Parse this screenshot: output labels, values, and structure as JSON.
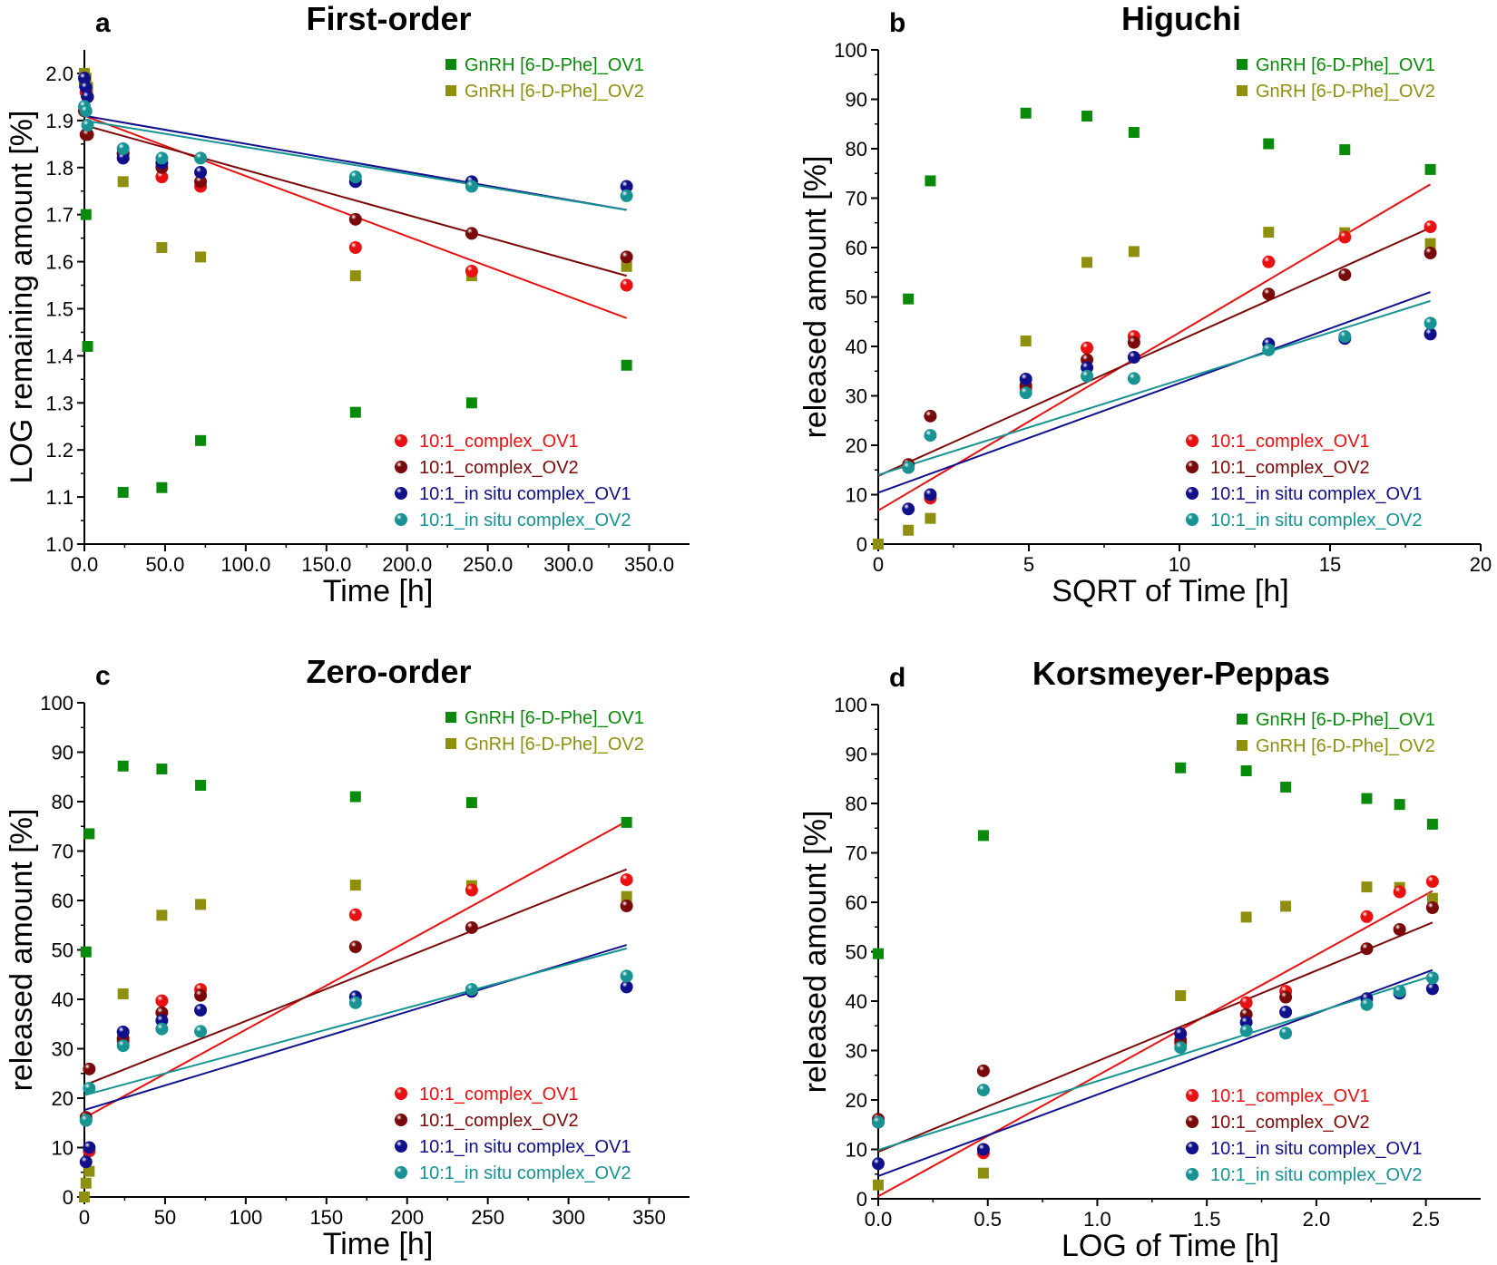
{
  "chart_data": [
    {
      "type": "scatter",
      "panel": "a",
      "title": "First-order",
      "xlabel": "Time [h]",
      "ylabel": "LOG remaining amount [%]",
      "xlim": [
        0,
        375
      ],
      "ylim": [
        1.0,
        2.05
      ],
      "xticks": [
        0,
        50,
        100,
        150,
        200,
        250,
        300,
        350
      ],
      "yticks": [
        1.0,
        1.1,
        1.2,
        1.3,
        1.4,
        1.5,
        1.6,
        1.7,
        1.8,
        1.9,
        2.0
      ],
      "tick_format": "1dec",
      "series": [
        {
          "name": "GnRH [6-D-Phe]_OV1",
          "marker": "square",
          "color": "#0a8a0a",
          "x": [
            0,
            1,
            2,
            24,
            48,
            72,
            168,
            240,
            336
          ],
          "y": [
            1.98,
            1.7,
            1.42,
            1.11,
            1.12,
            1.22,
            1.28,
            1.3,
            1.38
          ]
        },
        {
          "name": "GnRH [6-D-Phe]_OV2",
          "marker": "square",
          "color": "#8f8f0f",
          "x": [
            0,
            1,
            2,
            24,
            48,
            72,
            168,
            240,
            336
          ],
          "y": [
            2.0,
            1.99,
            1.97,
            1.77,
            1.63,
            1.61,
            1.57,
            1.57,
            1.59
          ]
        },
        {
          "name": "10:1_complex_OV1",
          "marker": "sphere",
          "color": "#e81010",
          "x": [
            0,
            1,
            2,
            24,
            48,
            72,
            168,
            240,
            336
          ],
          "y": [
            1.99,
            1.96,
            1.95,
            1.83,
            1.78,
            1.76,
            1.63,
            1.58,
            1.55
          ],
          "fit": [
            [
              0,
              1.91
            ],
            [
              336,
              1.48
            ]
          ]
        },
        {
          "name": "10:1_complex_OV2",
          "marker": "sphere",
          "color": "#7a0a0a",
          "x": [
            0,
            1,
            2,
            24,
            48,
            72,
            168,
            240,
            336
          ],
          "y": [
            1.92,
            1.87,
            1.87,
            1.83,
            1.8,
            1.77,
            1.69,
            1.66,
            1.61
          ],
          "fit": [
            [
              0,
              1.89
            ],
            [
              336,
              1.57
            ]
          ]
        },
        {
          "name": "10:1_in situ complex_OV1",
          "marker": "sphere",
          "color": "#10108a",
          "x": [
            0,
            1,
            2,
            24,
            48,
            72,
            168,
            240,
            336
          ],
          "y": [
            1.99,
            1.97,
            1.95,
            1.82,
            1.81,
            1.79,
            1.77,
            1.77,
            1.76
          ],
          "fit": [
            [
              0,
              1.91
            ],
            [
              336,
              1.71
            ]
          ]
        },
        {
          "name": "10:1_in situ complex_OV2",
          "marker": "sphere",
          "color": "#179393",
          "x": [
            0,
            1,
            2,
            24,
            48,
            72,
            168,
            240,
            336
          ],
          "y": [
            1.93,
            1.92,
            1.89,
            1.84,
            1.82,
            1.82,
            1.78,
            1.76,
            1.74
          ],
          "fit": [
            [
              0,
              1.9
            ],
            [
              336,
              1.71
            ]
          ]
        }
      ]
    },
    {
      "type": "scatter",
      "panel": "b",
      "title": "Higuchi",
      "xlabel": "SQRT of Time [h]",
      "ylabel": "released amount [%]",
      "xlim": [
        0,
        20
      ],
      "ylim": [
        0,
        100
      ],
      "xticks": [
        0,
        5,
        10,
        15,
        20
      ],
      "yticks": [
        0,
        10,
        20,
        30,
        40,
        50,
        60,
        70,
        80,
        90,
        100
      ],
      "tick_format": "int",
      "series": [
        {
          "name": "GnRH [6-D-Phe]_OV1",
          "marker": "square",
          "color": "#0a8a0a",
          "x": [
            1.0,
            1.73,
            4.9,
            6.93,
            8.49,
            12.96,
            15.49,
            18.33
          ],
          "y": [
            49.6,
            73.5,
            87.2,
            86.6,
            83.3,
            81.0,
            79.8,
            75.8
          ]
        },
        {
          "name": "GnRH [6-D-Phe]_OV2",
          "marker": "square",
          "color": "#8f8f0f",
          "x": [
            0,
            1.0,
            1.73,
            4.9,
            6.93,
            8.49,
            12.96,
            15.49,
            18.33
          ],
          "y": [
            0,
            2.8,
            5.2,
            41.1,
            57.0,
            59.2,
            63.1,
            63.0,
            60.8
          ]
        },
        {
          "name": "10:1_complex_OV1",
          "marker": "sphere",
          "color": "#e81010",
          "x": [
            1.0,
            1.73,
            4.9,
            6.93,
            8.49,
            12.96,
            15.49,
            18.33
          ],
          "y": [
            15.5,
            9.3,
            31.5,
            39.7,
            42.0,
            57.1,
            62.1,
            64.2
          ],
          "fit": [
            [
              0,
              6.8
            ],
            [
              18.33,
              72.8
            ]
          ]
        },
        {
          "name": "10:1_complex_OV2",
          "marker": "sphere",
          "color": "#7a0a0a",
          "x": [
            1.0,
            1.73,
            4.9,
            6.93,
            8.49,
            12.96,
            15.49,
            18.33
          ],
          "y": [
            16.1,
            25.9,
            32.1,
            37.3,
            40.8,
            50.6,
            54.5,
            58.9
          ],
          "fit": [
            [
              0,
              13.8
            ],
            [
              18.33,
              64.0
            ]
          ]
        },
        {
          "name": "10:1_in situ complex_OV1",
          "marker": "sphere",
          "color": "#10108a",
          "x": [
            1.0,
            1.73,
            4.9,
            6.93,
            8.49,
            12.96,
            15.49,
            18.33
          ],
          "y": [
            7.1,
            10.0,
            33.4,
            35.7,
            37.8,
            40.5,
            41.6,
            42.5
          ],
          "fit": [
            [
              0,
              10.4
            ],
            [
              18.33,
              51.0
            ]
          ]
        },
        {
          "name": "10:1_in situ complex_OV2",
          "marker": "sphere",
          "color": "#179393",
          "x": [
            1.0,
            1.73,
            4.9,
            6.93,
            8.49,
            12.96,
            15.49,
            18.33
          ],
          "y": [
            15.5,
            22.0,
            30.6,
            34.0,
            33.5,
            39.3,
            42.0,
            44.7
          ],
          "fit": [
            [
              0,
              14.0
            ],
            [
              18.33,
              49.2
            ]
          ]
        }
      ]
    },
    {
      "type": "scatter",
      "panel": "c",
      "title": "Zero-order",
      "xlabel": "Time [h]",
      "ylabel": "released amount [%]",
      "xlim": [
        0,
        375
      ],
      "ylim": [
        0,
        100
      ],
      "xticks": [
        0,
        50,
        100,
        150,
        200,
        250,
        300,
        350
      ],
      "yticks": [
        0,
        10,
        20,
        30,
        40,
        50,
        60,
        70,
        80,
        90,
        100
      ],
      "tick_format": "int",
      "series": [
        {
          "name": "GnRH [6-D-Phe]_OV1",
          "marker": "square",
          "color": "#0a8a0a",
          "x": [
            1,
            3,
            24,
            48,
            72,
            168,
            240,
            336
          ],
          "y": [
            49.6,
            73.5,
            87.2,
            86.6,
            83.3,
            81.0,
            79.8,
            75.8
          ]
        },
        {
          "name": "GnRH [6-D-Phe]_OV2",
          "marker": "square",
          "color": "#8f8f0f",
          "x": [
            0,
            1,
            3,
            24,
            48,
            72,
            168,
            240,
            336
          ],
          "y": [
            0,
            2.8,
            5.2,
            41.1,
            57.0,
            59.2,
            63.1,
            63.0,
            60.8
          ]
        },
        {
          "name": "10:1_complex_OV1",
          "marker": "sphere",
          "color": "#e81010",
          "x": [
            1,
            3,
            24,
            48,
            72,
            168,
            240,
            336
          ],
          "y": [
            15.5,
            9.3,
            31.5,
            39.7,
            42.0,
            57.1,
            62.1,
            64.2
          ],
          "fit": [
            [
              0,
              16.0
            ],
            [
              336,
              76.0
            ]
          ]
        },
        {
          "name": "10:1_complex_OV2",
          "marker": "sphere",
          "color": "#7a0a0a",
          "x": [
            1,
            3,
            24,
            48,
            72,
            168,
            240,
            336
          ],
          "y": [
            16.1,
            25.9,
            32.1,
            37.3,
            40.8,
            50.6,
            54.5,
            58.9
          ],
          "fit": [
            [
              0,
              22.6
            ],
            [
              336,
              66.3
            ]
          ]
        },
        {
          "name": "10:1_in situ complex_OV1",
          "marker": "sphere",
          "color": "#10108a",
          "x": [
            1,
            3,
            24,
            48,
            72,
            168,
            240,
            336
          ],
          "y": [
            7.1,
            10.0,
            33.4,
            35.7,
            37.8,
            40.5,
            41.6,
            42.5
          ],
          "fit": [
            [
              0,
              17.6
            ],
            [
              336,
              51.0
            ]
          ]
        },
        {
          "name": "10:1_in situ complex_OV2",
          "marker": "sphere",
          "color": "#179393",
          "x": [
            1,
            3,
            24,
            48,
            72,
            168,
            240,
            336
          ],
          "y": [
            15.5,
            22.0,
            30.6,
            34.0,
            33.5,
            39.3,
            42.0,
            44.7
          ],
          "fit": [
            [
              0,
              20.6
            ],
            [
              336,
              50.3
            ]
          ]
        }
      ]
    },
    {
      "type": "scatter",
      "panel": "d",
      "title": "Korsmeyer-Peppas",
      "xlabel": "LOG of Time [h]",
      "ylabel": "released amount [%]",
      "xlim": [
        0,
        2.75
      ],
      "ylim": [
        0,
        100
      ],
      "xticks": [
        0.0,
        0.5,
        1.0,
        1.5,
        2.0,
        2.5
      ],
      "yticks": [
        0,
        10,
        20,
        30,
        40,
        50,
        60,
        70,
        80,
        90,
        100
      ],
      "xtick_format": "1dec",
      "tick_format": "int",
      "series": [
        {
          "name": "GnRH [6-D-Phe]_OV1",
          "marker": "square",
          "color": "#0a8a0a",
          "x": [
            0,
            0.48,
            1.38,
            1.68,
            1.86,
            2.23,
            2.38,
            2.53
          ],
          "y": [
            49.6,
            73.5,
            87.2,
            86.6,
            83.3,
            81.0,
            79.8,
            75.8
          ]
        },
        {
          "name": "GnRH [6-D-Phe]_OV2",
          "marker": "square",
          "color": "#8f8f0f",
          "x": [
            0,
            0.48,
            1.38,
            1.68,
            1.86,
            2.23,
            2.38,
            2.53
          ],
          "y": [
            2.8,
            5.2,
            41.1,
            57.0,
            59.2,
            63.1,
            63.0,
            60.8
          ]
        },
        {
          "name": "10:1_complex_OV1",
          "marker": "sphere",
          "color": "#e81010",
          "x": [
            0,
            0.48,
            1.38,
            1.68,
            1.86,
            2.23,
            2.38,
            2.53
          ],
          "y": [
            15.5,
            9.3,
            31.5,
            39.7,
            42.0,
            57.1,
            62.1,
            64.2
          ],
          "fit": [
            [
              0,
              0.5
            ],
            [
              2.53,
              62.3
            ]
          ]
        },
        {
          "name": "10:1_complex_OV2",
          "marker": "sphere",
          "color": "#7a0a0a",
          "x": [
            0,
            0.48,
            1.38,
            1.68,
            1.86,
            2.23,
            2.38,
            2.53
          ],
          "y": [
            16.1,
            25.9,
            32.1,
            37.3,
            40.8,
            50.6,
            54.5,
            58.9
          ],
          "fit": [
            [
              0,
              9.5
            ],
            [
              2.53,
              55.9
            ]
          ]
        },
        {
          "name": "10:1_in situ complex_OV1",
          "marker": "sphere",
          "color": "#10108a",
          "x": [
            0,
            0.48,
            1.38,
            1.68,
            1.86,
            2.23,
            2.38,
            2.53
          ],
          "y": [
            7.1,
            10.0,
            33.4,
            35.7,
            37.8,
            40.5,
            41.6,
            42.5
          ],
          "fit": [
            [
              0,
              4.6
            ],
            [
              2.53,
              46.3
            ]
          ]
        },
        {
          "name": "10:1_in situ complex_OV2",
          "marker": "sphere",
          "color": "#179393",
          "x": [
            0,
            0.48,
            1.38,
            1.68,
            1.86,
            2.23,
            2.38,
            2.53
          ],
          "y": [
            15.5,
            22.0,
            30.6,
            34.0,
            33.5,
            39.3,
            42.0,
            44.7
          ],
          "fit": [
            [
              0,
              9.9
            ],
            [
              2.53,
              45.1
            ]
          ]
        }
      ]
    }
  ]
}
